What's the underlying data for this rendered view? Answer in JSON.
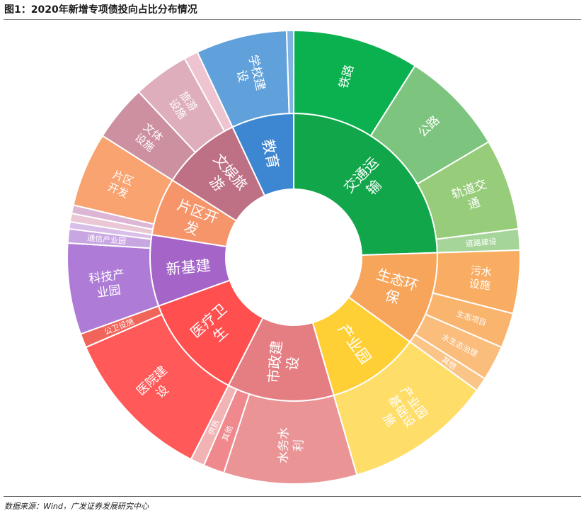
{
  "title": "图1：2020年新增专项债投向占比分布情况",
  "source": "数据来源：Wind，广发证券发展研究中心",
  "colors": {
    "label": "#ffffff"
  },
  "chart_data": {
    "type": "sunburst",
    "title": "图1：2020年新增专项债投向占比分布情况",
    "categories": [
      {
        "name": "交通运输",
        "value": 24.5,
        "color": "#12A64A",
        "children": [
          {
            "name": "铁路",
            "value": 9.0,
            "color": "#0CB14F"
          },
          {
            "name": "公路",
            "value": 7.5,
            "color": "#7DC57F"
          },
          {
            "name": "轨道交通",
            "value": 6.5,
            "color": "#97CC7A"
          },
          {
            "name": "道路建设",
            "value": 1.5,
            "color": "#A6D59A"
          }
        ]
      },
      {
        "name": "生态环保",
        "value": 10.5,
        "color": "#F8A55C",
        "children": [
          {
            "name": "污水设施",
            "value": 4.5,
            "color": "#F9AD63"
          },
          {
            "name": "生态项目",
            "value": 2.5,
            "color": "#F9B56E"
          },
          {
            "name": "水生态治理",
            "value": 2.5,
            "color": "#FABD7C"
          },
          {
            "name": "其他",
            "value": 1.0,
            "color": "#FBC588"
          }
        ]
      },
      {
        "name": "产业园",
        "value": 10.5,
        "color": "#FFD035",
        "children": [
          {
            "name": "产业园基础设施",
            "value": 10.5,
            "color": "#FFDD69"
          }
        ]
      },
      {
        "name": "市政建设",
        "value": 12.0,
        "color": "#E57E82",
        "children": [
          {
            "name": "水务水利",
            "value": 9.5,
            "color": "#EA9496"
          },
          {
            "name": "其他",
            "value": 1.5,
            "color": "#EF898D"
          },
          {
            "name": "供热",
            "value": 1.0,
            "color": "#F2B3B5"
          }
        ]
      },
      {
        "name": "医疗卫生",
        "value": 12.0,
        "color": "#FF4F4F",
        "children": [
          {
            "name": "医院建设",
            "value": 11.0,
            "color": "#FF5959"
          },
          {
            "name": "公卫设施",
            "value": 1.0,
            "color": "#F0645A"
          }
        ]
      },
      {
        "name": "新基建",
        "value": 8.0,
        "color": "#A464C8",
        "children": [
          {
            "name": "科技产业园",
            "value": 6.5,
            "color": "#AE7BD6"
          },
          {
            "name": "通信产业园",
            "value": 1.0,
            "color": "#C8A6E2"
          },
          {
            "name": "",
            "value": 0.5,
            "color": "#D8BEE8"
          }
        ]
      },
      {
        "name": "片区开发",
        "value": 6.5,
        "color": "#F7956A",
        "children": [
          {
            "name": "",
            "value": 0.6,
            "color": "#E9C7D5"
          },
          {
            "name": "",
            "value": 0.6,
            "color": "#DDB6D6"
          },
          {
            "name": "片区开发",
            "value": 5.3,
            "color": "#F8A370"
          }
        ]
      },
      {
        "name": "文娱旅游",
        "value": 9.0,
        "color": "#BE7085",
        "children": [
          {
            "name": "文体设施",
            "value": 4.0,
            "color": "#CC90A0"
          },
          {
            "name": "旅游设施",
            "value": 4.0,
            "color": "#DEAEBD"
          },
          {
            "name": "",
            "value": 1.0,
            "color": "#EDC4D0"
          }
        ]
      },
      {
        "name": "教育",
        "value": 7.0,
        "color": "#3D86D1",
        "children": [
          {
            "name": "学校建设",
            "value": 6.5,
            "color": "#61A1DB"
          },
          {
            "name": "",
            "value": 0.5,
            "color": "#7FB3E3"
          }
        ]
      }
    ]
  }
}
